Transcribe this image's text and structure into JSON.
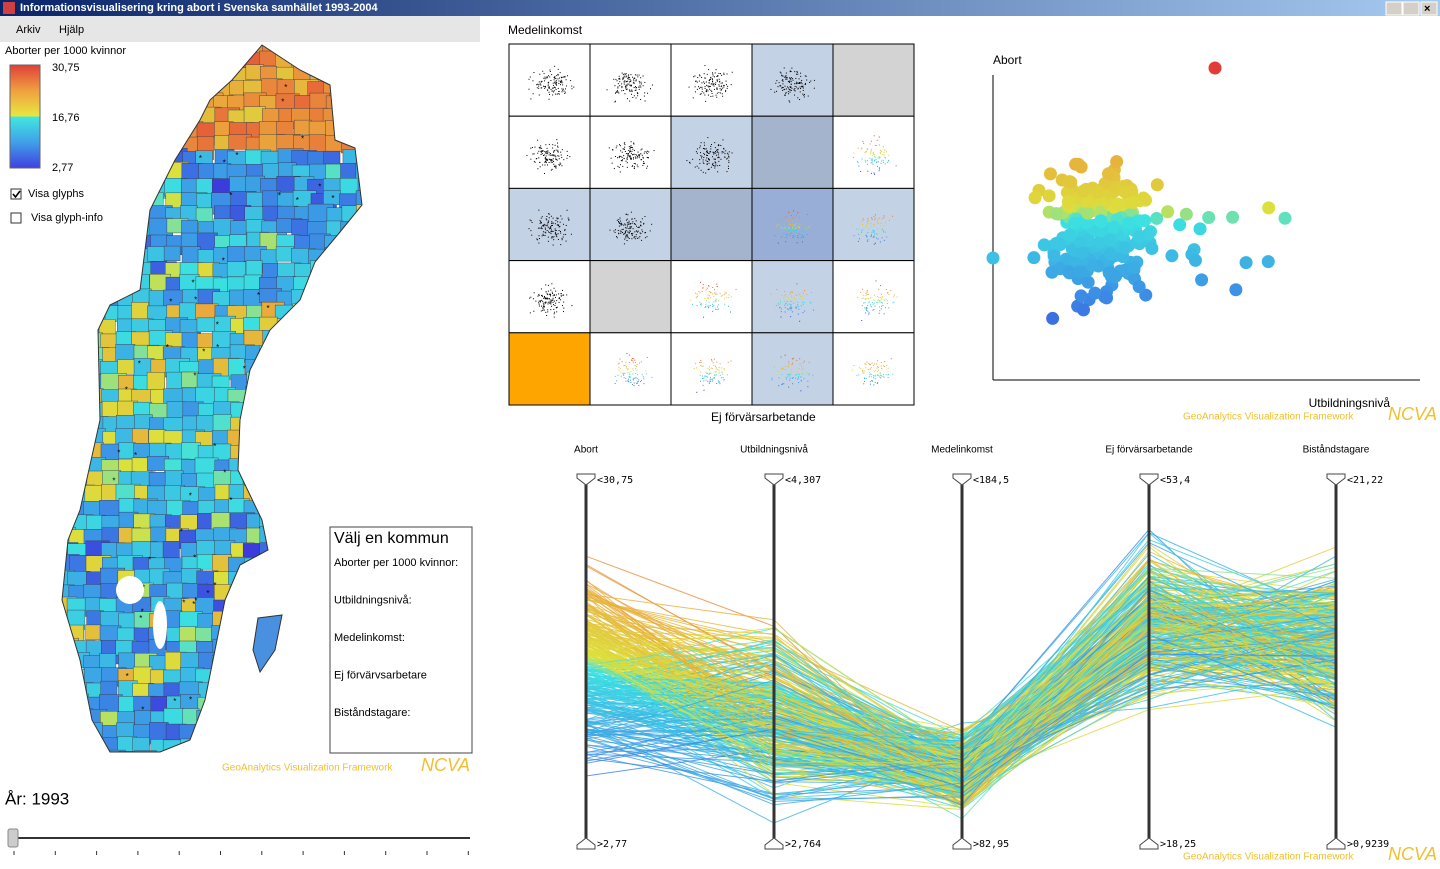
{
  "window": {
    "title": "Informationsvisualisering kring abort i Svenska samhället 1993-2004"
  },
  "menu": [
    "Arkiv",
    "Hjälp"
  ],
  "map_panel": {
    "legend": {
      "title": "Aborter per 1000 kvinnor",
      "labels": [
        "30,75",
        "16,76",
        "2,77"
      ]
    },
    "checkboxes": [
      {
        "label": "Visa glyphs",
        "checked": true
      },
      {
        "label": "Visa glyph-info",
        "checked": false
      }
    ],
    "info_box": {
      "title": "Välj en kommun",
      "fields": [
        "Aborter per 1000 kvinnor:",
        "Utbildningsnivå:",
        "Medelinkomst:",
        "Ej förvärvsarbetare",
        "Biståndstagare:"
      ]
    },
    "branding": {
      "framework": "GeoAnalytics Visualization Framework",
      "logo": "NCVA"
    },
    "year_label": "År: 1993"
  },
  "scatter_matrix": {
    "top_label": "Medelinkomst",
    "bottom_label": "Ej förvärsarbetande"
  },
  "scatter_plot": {
    "y_label": "Abort",
    "x_label": "Utbildningsnivå",
    "branding": {
      "framework": "GeoAnalytics Visualization Framework",
      "logo": "NCVA"
    }
  },
  "parallel_coordinates": {
    "axes": [
      {
        "name": "Abort",
        "max": "<30,75",
        "min": ">2,77"
      },
      {
        "name": "Utbildningsnivå",
        "max": "<4,307",
        "min": ">2,764"
      },
      {
        "name": "Medelinkomst",
        "max": "<184,5",
        "min": ">82,95"
      },
      {
        "name": "Ej förvärsarbetande",
        "max": "<53,4",
        "min": ">18,25"
      },
      {
        "name": "Biståndstagare",
        "max": "<21,22",
        "min": ">0,9239"
      }
    ],
    "branding": {
      "framework": "GeoAnalytics Visualization Framework",
      "logo": "NCVA"
    }
  }
}
